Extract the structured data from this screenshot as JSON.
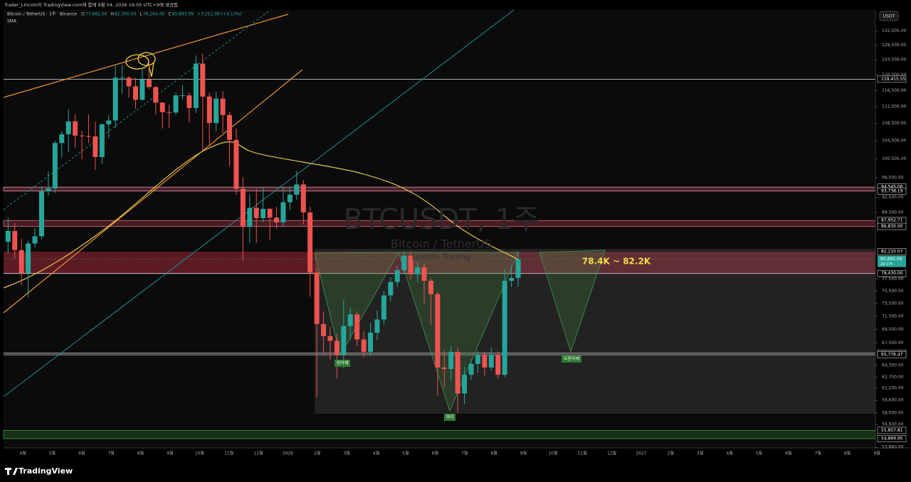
{
  "header": {
    "credit": "Trader_Lincoln이 TradingView.com에 함께 9월 04, 2026 16:05 UTC+9에 생성됨",
    "symbol": "Bitcoin / TetherUS · 1주 · Binance",
    "ohlc": [
      {
        "key": "O",
        "value": "77,682.00"
      },
      {
        "key": "H",
        "value": "82,300.00"
      },
      {
        "key": "L",
        "value": "76,264.00"
      },
      {
        "key": "C",
        "value": "80,893.09"
      }
    ],
    "change": "+3,211.09 (+4.13%)",
    "indicator": "SMA",
    "currency": "USDT"
  },
  "watermark": {
    "title": "BTCUSDT, 1주",
    "subtitle": "Bitcoin / TetherUS",
    "author": "Lincoln Trading"
  },
  "annotations": {
    "zone": "78.4K ~ 82.2K",
    "left_shoulder": "왼어깨",
    "head": "머리",
    "right_shoulder": "오른어깨"
  },
  "footer": {
    "brand": "TradingView"
  },
  "chart_data": {
    "type": "candlestick",
    "log": true,
    "ylim": [
      53950,
      138700
    ],
    "up_color": "#26a69a",
    "down_color": "#ef5350",
    "yticks": [
      {
        "value": 132500,
        "label": "132,500.00"
      },
      {
        "value": 128500,
        "label": "128,500.00"
      },
      {
        "value": 124500,
        "label": "124,500.00"
      },
      {
        "value": 120500,
        "label": "120,500.00"
      },
      {
        "value": 116500,
        "label": "116,500.00"
      },
      {
        "value": 112500,
        "label": "112,500.00"
      },
      {
        "value": 108500,
        "label": "108,500.00"
      },
      {
        "value": 104500,
        "label": "104,500.00"
      },
      {
        "value": 100500,
        "label": "100,500.00"
      },
      {
        "value": 96500,
        "label": "96,500.00"
      },
      {
        "value": 92500,
        "label": "92,500.00"
      },
      {
        "value": 89500,
        "label": "89,500.00"
      },
      {
        "value": 77500,
        "label": "77,500.00"
      },
      {
        "value": 75500,
        "label": "75,500.00"
      },
      {
        "value": 73500,
        "label": "73,500.00"
      },
      {
        "value": 71500,
        "label": "71,500.00"
      },
      {
        "value": 69500,
        "label": "69,500.00"
      },
      {
        "value": 67500,
        "label": "67,500.00"
      },
      {
        "value": 64300,
        "label": "64,300.00"
      },
      {
        "value": 62700,
        "label": "62,700.00"
      },
      {
        "value": 61200,
        "label": "61,200.00"
      },
      {
        "value": 59600,
        "label": "59,600.00"
      },
      {
        "value": 58000,
        "label": "58,000.00"
      },
      {
        "value": 56600,
        "label": "56,600.00"
      },
      {
        "value": 53860,
        "label": "53,860.00"
      }
    ],
    "price_levels": [
      {
        "value": 119415.55,
        "label": "119,415.55"
      },
      {
        "value": 94545.06,
        "label": "94,545.06"
      },
      {
        "value": 93738.19,
        "label": "93,738.19"
      },
      {
        "value": 87952.71,
        "label": "87,952.71"
      },
      {
        "value": 86830,
        "label": "86,830.00"
      },
      {
        "value": 82210.07,
        "label": "82,210.07"
      },
      {
        "value": 78430,
        "label": "78,430.00"
      },
      {
        "value": 66010.93,
        "label": "66,010.93"
      },
      {
        "value": 65776.47,
        "label": "65,776.47"
      },
      {
        "value": 55857.81,
        "label": "55,857.81"
      },
      {
        "value": 54869.95,
        "label": "54,869.95"
      }
    ],
    "last_price": {
      "value": 80893.09,
      "label": "80,893.09",
      "countdown": "2d 17h"
    },
    "xticks": [
      "4월",
      "5월",
      "6월",
      "7월",
      "8월",
      "9월",
      "10월",
      "11월",
      "12월",
      "2026",
      "2월",
      "3월",
      "4월",
      "5월",
      "6월",
      "7월",
      "8월",
      "9월",
      "10월",
      "11월",
      "12월",
      "2027",
      "2월",
      "3월",
      "4월",
      "5월",
      "6월",
      "7월",
      "8월",
      "9월"
    ],
    "candles": [
      [
        84000,
        88500,
        82000,
        86000
      ],
      [
        86000,
        87500,
        81000,
        82500
      ],
      [
        82500,
        84500,
        76500,
        78500
      ],
      [
        78500,
        84200,
        74500,
        83700
      ],
      [
        83700,
        86500,
        83000,
        85000
      ],
      [
        85000,
        94500,
        84500,
        93700
      ],
      [
        93700,
        97800,
        92800,
        94300
      ],
      [
        94300,
        104500,
        93400,
        104000
      ],
      [
        104000,
        106700,
        100700,
        106000
      ],
      [
        106000,
        111900,
        102000,
        109000
      ],
      [
        109000,
        110700,
        103000,
        105700
      ],
      [
        105700,
        106800,
        100400,
        105600
      ],
      [
        105600,
        110600,
        104000,
        105500
      ],
      [
        105500,
        108900,
        98200,
        100900
      ],
      [
        100900,
        108500,
        99500,
        108300
      ],
      [
        108300,
        110500,
        105100,
        109200
      ],
      [
        109200,
        123200,
        107500,
        119800
      ],
      [
        119800,
        123100,
        115700,
        119800
      ],
      [
        119800,
        120200,
        114700,
        117600
      ],
      [
        117600,
        119800,
        112000,
        114200
      ],
      [
        114200,
        122300,
        114000,
        119300
      ],
      [
        119300,
        124500,
        116800,
        117400
      ],
      [
        117400,
        117600,
        110600,
        113500
      ],
      [
        113500,
        113600,
        107300,
        111200
      ],
      [
        111200,
        113000,
        107400,
        111100
      ],
      [
        111100,
        116000,
        110600,
        115300
      ],
      [
        115300,
        117900,
        114200,
        115300
      ],
      [
        115300,
        116000,
        108700,
        112200
      ],
      [
        112200,
        125700,
        111000,
        123500
      ],
      [
        123500,
        126200,
        102000,
        115000
      ],
      [
        115000,
        116000,
        103500,
        108600
      ],
      [
        108600,
        116200,
        106700,
        114500
      ],
      [
        114500,
        116400,
        106300,
        110500
      ],
      [
        110500,
        111200,
        98900,
        104700
      ],
      [
        104700,
        107300,
        93000,
        94200
      ],
      [
        94200,
        96600,
        80600,
        86800
      ],
      [
        86800,
        93100,
        83800,
        90400
      ],
      [
        90400,
        94200,
        83800,
        88400
      ],
      [
        88400,
        94600,
        87600,
        90200
      ],
      [
        90200,
        90400,
        84400,
        88500
      ],
      [
        88500,
        90600,
        86400,
        87600
      ],
      [
        87600,
        94400,
        86900,
        91500
      ],
      [
        91500,
        94800,
        90000,
        93000
      ],
      [
        93000,
        97900,
        92000,
        95100
      ],
      [
        95100,
        96000,
        87200,
        89500
      ],
      [
        89500,
        90600,
        74600,
        78600
      ],
      [
        78600,
        79300,
        60000,
        70300
      ],
      [
        70300,
        72200,
        65700,
        68500
      ],
      [
        68500,
        69900,
        65100,
        67800
      ],
      [
        67800,
        68800,
        62500,
        65800
      ],
      [
        65800,
        74100,
        63900,
        70000
      ],
      [
        70000,
        72900,
        68000,
        71800
      ],
      [
        71800,
        72300,
        67000,
        68000
      ],
      [
        68000,
        69200,
        65400,
        66200
      ],
      [
        66200,
        70500,
        65600,
        69000
      ],
      [
        69000,
        72400,
        67900,
        71000
      ],
      [
        71000,
        75500,
        70200,
        74800
      ],
      [
        74800,
        77800,
        73800,
        77000
      ],
      [
        77000,
        79800,
        76200,
        79000
      ],
      [
        79000,
        82300,
        78500,
        81500
      ],
      [
        81500,
        82200,
        77400,
        78300
      ],
      [
        78300,
        80400,
        77000,
        79500
      ],
      [
        79500,
        80000,
        73500,
        77200
      ],
      [
        77200,
        77600,
        70200,
        75000
      ],
      [
        75000,
        75400,
        60200,
        64000
      ],
      [
        64000,
        66400,
        61300,
        63800
      ],
      [
        63800,
        67000,
        62200,
        66200
      ],
      [
        66200,
        66800,
        58000,
        60500
      ],
      [
        60500,
        64100,
        59100,
        63000
      ],
      [
        63000,
        65200,
        62300,
        64500
      ],
      [
        64500,
        66400,
        63200,
        65800
      ],
      [
        65800,
        66200,
        62900,
        64000
      ],
      [
        64000,
        66800,
        63600,
        65800
      ],
      [
        65800,
        66300,
        62500,
        63000
      ],
      [
        63000,
        79100,
        62700,
        77200
      ],
      [
        77200,
        79800,
        76200,
        77682
      ],
      [
        77682,
        82300,
        76264,
        80893.09
      ]
    ]
  }
}
